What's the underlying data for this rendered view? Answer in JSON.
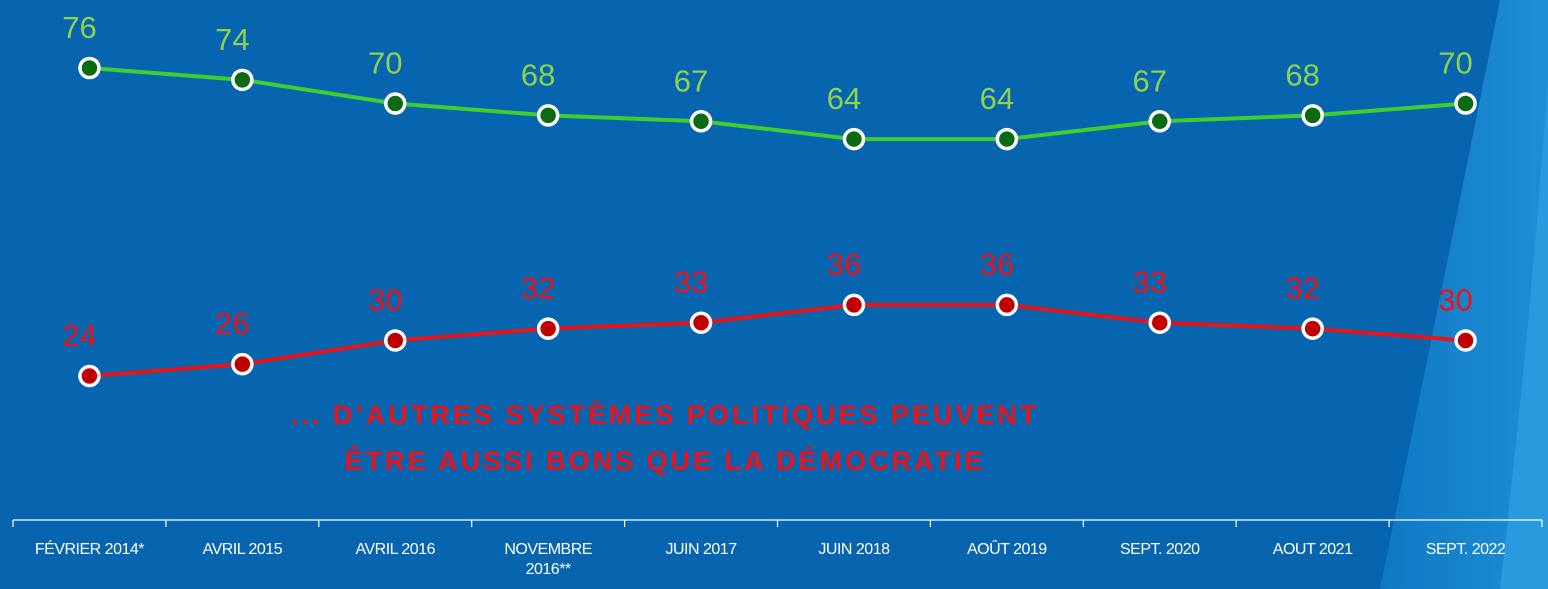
{
  "chart_data": {
    "type": "line",
    "categories": [
      "FÉVRIER 2014*",
      "AVRIL 2015",
      "AVRIL 2016",
      "NOVEMBRE\n2016**",
      "JUIN 2017",
      "JUIN 2018",
      "AOÛT 2019",
      "SEPT. 2020",
      "AOUT 2021",
      "SEPT. 2022"
    ],
    "series": [
      {
        "color": "#3ccf2e",
        "values": [
          76,
          74,
          70,
          68,
          67,
          64,
          64,
          67,
          68,
          70
        ]
      },
      {
        "color": "#e8141b",
        "values": [
          24,
          26,
          30,
          32,
          33,
          36,
          36,
          33,
          32,
          30
        ]
      }
    ],
    "annotation": "... D’AUTRES SYSTÈMES POLITIQUES PEUVENT\nÊTRE AUSSI BONS QUE LA DÉMOCRATIE"
  }
}
